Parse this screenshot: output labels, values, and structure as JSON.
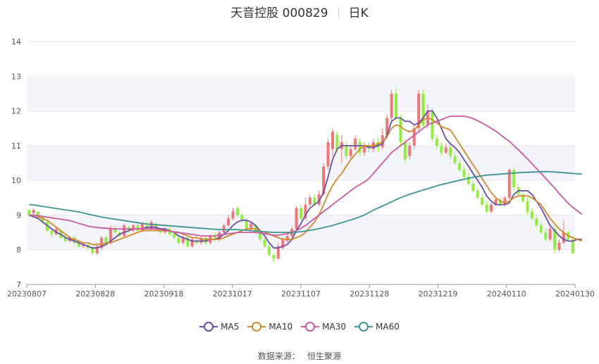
{
  "title": {
    "name": "天音控股 000829",
    "period": "日K"
  },
  "legend": [
    {
      "name": "MA5",
      "color": "#6a4fa3"
    },
    {
      "name": "MA10",
      "color": "#d4882e"
    },
    {
      "name": "MA30",
      "color": "#cc5aa0"
    },
    {
      "name": "MA60",
      "color": "#3f9595"
    }
  ],
  "source": {
    "label": "数据来源：",
    "value": "恒生聚源"
  },
  "colors": {
    "up": "#ee7777",
    "down": "#90ee40",
    "band": "#f4f5fa",
    "axis": "#999999",
    "grid": "#e6e6e6"
  },
  "chart_data": {
    "type": "candlestick",
    "y_ticks": [
      "7",
      "8",
      "9",
      "10",
      "11",
      "12",
      "13",
      "14"
    ],
    "ylim": [
      7,
      14
    ],
    "x_ticks": [
      "20230807",
      "20230828",
      "20230918",
      "20231017",
      "20231107",
      "20231128",
      "20231219",
      "20240110",
      "20240130"
    ],
    "candles": [
      [
        9.15,
        9.0,
        8.95,
        9.1
      ],
      [
        9.05,
        9.15,
        9.0,
        9.2
      ],
      [
        9.1,
        8.95,
        8.9,
        9.1
      ],
      [
        8.95,
        8.8,
        8.75,
        8.95
      ],
      [
        8.8,
        8.55,
        8.5,
        8.85
      ],
      [
        8.55,
        8.45,
        8.35,
        8.6
      ],
      [
        8.45,
        8.6,
        8.4,
        8.65
      ],
      [
        8.55,
        8.35,
        8.3,
        8.6
      ],
      [
        8.35,
        8.25,
        8.2,
        8.45
      ],
      [
        8.25,
        8.35,
        8.2,
        8.4
      ],
      [
        8.35,
        8.2,
        8.15,
        8.4
      ],
      [
        8.2,
        8.1,
        8.05,
        8.3
      ],
      [
        8.1,
        8.15,
        8.05,
        8.2
      ],
      [
        8.15,
        8.05,
        8.0,
        8.2
      ],
      [
        8.05,
        7.9,
        7.85,
        8.1
      ],
      [
        7.9,
        8.1,
        7.85,
        8.2
      ],
      [
        8.05,
        8.35,
        8.0,
        8.4
      ],
      [
        8.35,
        8.2,
        8.15,
        8.4
      ],
      [
        8.2,
        8.6,
        8.15,
        8.7
      ],
      [
        8.6,
        8.5,
        8.45,
        8.7
      ],
      [
        8.5,
        8.4,
        8.35,
        8.55
      ],
      [
        8.4,
        8.7,
        8.35,
        8.75
      ],
      [
        8.65,
        8.55,
        8.5,
        8.7
      ],
      [
        8.55,
        8.7,
        8.5,
        8.75
      ],
      [
        8.7,
        8.55,
        8.5,
        8.75
      ],
      [
        8.55,
        8.75,
        8.5,
        8.8
      ],
      [
        8.7,
        8.6,
        8.55,
        8.8
      ],
      [
        8.6,
        8.8,
        8.55,
        8.85
      ],
      [
        8.75,
        8.6,
        8.55,
        8.8
      ],
      [
        8.6,
        8.5,
        8.45,
        8.65
      ],
      [
        8.5,
        8.6,
        8.45,
        8.65
      ],
      [
        8.6,
        8.45,
        8.4,
        8.65
      ],
      [
        8.45,
        8.35,
        8.3,
        8.5
      ],
      [
        8.35,
        8.2,
        8.15,
        8.4
      ],
      [
        8.2,
        8.35,
        8.15,
        8.4
      ],
      [
        8.35,
        8.1,
        8.05,
        8.4
      ],
      [
        8.1,
        8.3,
        8.05,
        8.35
      ],
      [
        8.25,
        8.2,
        8.15,
        8.35
      ],
      [
        8.2,
        8.35,
        8.15,
        8.4
      ],
      [
        8.35,
        8.2,
        8.15,
        8.4
      ],
      [
        8.2,
        8.4,
        8.15,
        8.45
      ],
      [
        8.4,
        8.3,
        8.25,
        8.5
      ],
      [
        8.3,
        8.5,
        8.25,
        8.55
      ],
      [
        8.5,
        8.7,
        8.45,
        8.75
      ],
      [
        8.7,
        8.9,
        8.65,
        9.0
      ],
      [
        8.9,
        9.1,
        8.85,
        9.2
      ],
      [
        9.2,
        9.0,
        8.95,
        9.25
      ],
      [
        9.0,
        8.85,
        8.8,
        9.05
      ],
      [
        8.85,
        8.6,
        8.55,
        8.9
      ],
      [
        8.6,
        8.75,
        8.55,
        8.8
      ],
      [
        8.7,
        8.5,
        8.45,
        8.75
      ],
      [
        8.5,
        8.3,
        8.25,
        8.55
      ],
      [
        8.3,
        8.1,
        8.05,
        8.35
      ],
      [
        8.1,
        7.85,
        7.8,
        8.15
      ],
      [
        7.85,
        7.75,
        7.65,
        7.9
      ],
      [
        7.75,
        8.1,
        7.7,
        8.2
      ],
      [
        8.05,
        8.3,
        8.0,
        8.35
      ],
      [
        8.25,
        8.4,
        8.2,
        8.45
      ],
      [
        8.4,
        8.6,
        8.35,
        8.65
      ],
      [
        8.6,
        9.2,
        8.55,
        9.25
      ],
      [
        9.2,
        8.9,
        8.85,
        9.3
      ],
      [
        8.9,
        9.3,
        8.85,
        9.5
      ],
      [
        9.3,
        9.5,
        9.25,
        9.6
      ],
      [
        9.5,
        9.3,
        9.25,
        9.6
      ],
      [
        9.3,
        9.6,
        9.25,
        9.7
      ],
      [
        9.6,
        10.4,
        9.55,
        10.5
      ],
      [
        10.4,
        11.1,
        10.3,
        11.2
      ],
      [
        10.9,
        11.4,
        10.7,
        11.5
      ],
      [
        11.3,
        10.9,
        10.8,
        11.4
      ],
      [
        10.9,
        11.1,
        10.5,
        11.3
      ],
      [
        11.0,
        10.7,
        10.6,
        11.1
      ],
      [
        10.7,
        10.9,
        10.6,
        11.0
      ],
      [
        10.9,
        11.2,
        10.85,
        11.3
      ],
      [
        11.1,
        10.8,
        10.7,
        11.2
      ],
      [
        10.8,
        11.0,
        10.7,
        11.1
      ],
      [
        11.0,
        10.9,
        10.8,
        11.1
      ],
      [
        10.9,
        11.1,
        10.8,
        11.2
      ],
      [
        11.1,
        10.95,
        10.8,
        11.25
      ],
      [
        10.95,
        11.3,
        10.9,
        11.5
      ],
      [
        11.3,
        11.8,
        11.2,
        11.9
      ],
      [
        11.8,
        12.5,
        11.7,
        12.6
      ],
      [
        12.5,
        11.8,
        11.7,
        12.7
      ],
      [
        11.8,
        11.1,
        11.0,
        11.9
      ],
      [
        11.1,
        10.6,
        10.5,
        11.2
      ],
      [
        10.7,
        11.0,
        10.6,
        11.1
      ],
      [
        11.0,
        11.5,
        10.9,
        11.6
      ],
      [
        11.5,
        12.5,
        11.4,
        12.6
      ],
      [
        12.5,
        11.6,
        11.5,
        12.6
      ],
      [
        11.6,
        12.0,
        11.5,
        12.2
      ],
      [
        12.0,
        11.2,
        11.1,
        12.1
      ],
      [
        11.2,
        11.0,
        10.9,
        11.3
      ],
      [
        11.0,
        10.8,
        10.7,
        11.1
      ],
      [
        10.8,
        10.95,
        10.75,
        11.05
      ],
      [
        10.95,
        10.7,
        10.6,
        11.0
      ],
      [
        10.7,
        10.5,
        10.45,
        10.8
      ],
      [
        10.5,
        10.3,
        10.25,
        10.6
      ],
      [
        10.3,
        10.1,
        10.05,
        10.4
      ],
      [
        10.1,
        9.9,
        9.85,
        10.2
      ],
      [
        9.9,
        9.7,
        9.65,
        10.0
      ],
      [
        9.7,
        9.5,
        9.45,
        9.8
      ],
      [
        9.5,
        9.3,
        9.25,
        9.6
      ],
      [
        9.3,
        9.1,
        9.05,
        9.4
      ],
      [
        9.1,
        9.3,
        9.05,
        9.35
      ],
      [
        9.3,
        9.45,
        9.25,
        9.5
      ],
      [
        9.45,
        9.3,
        9.25,
        9.5
      ],
      [
        9.3,
        9.5,
        9.25,
        9.55
      ],
      [
        9.5,
        10.3,
        9.45,
        10.35
      ],
      [
        10.3,
        9.8,
        9.7,
        10.4
      ],
      [
        9.8,
        9.6,
        9.55,
        9.9
      ],
      [
        9.6,
        9.4,
        9.35,
        9.7
      ],
      [
        9.4,
        9.1,
        9.0,
        9.5
      ],
      [
        9.1,
        8.9,
        8.85,
        9.2
      ],
      [
        8.9,
        8.7,
        8.65,
        9.0
      ],
      [
        8.7,
        8.5,
        8.45,
        8.8
      ],
      [
        8.5,
        8.3,
        8.25,
        8.6
      ],
      [
        8.3,
        8.6,
        8.25,
        8.65
      ],
      [
        8.6,
        8.0,
        7.9,
        8.7
      ],
      [
        8.0,
        8.2,
        7.95,
        8.3
      ],
      [
        8.2,
        8.5,
        8.15,
        8.85
      ],
      [
        8.5,
        8.3,
        8.25,
        8.55
      ],
      [
        8.3,
        7.9,
        7.85,
        8.35
      ]
    ],
    "series": [
      {
        "name": "MA5",
        "values": [
          9.0,
          8.95,
          8.9,
          8.8,
          8.7,
          8.6,
          8.5,
          8.45,
          8.35,
          8.3,
          8.25,
          8.2,
          8.15,
          8.1,
          8.05,
          8.05,
          8.1,
          8.15,
          8.25,
          8.35,
          8.45,
          8.5,
          8.55,
          8.6,
          8.6,
          8.6,
          8.65,
          8.65,
          8.65,
          8.6,
          8.6,
          8.55,
          8.5,
          8.4,
          8.35,
          8.3,
          8.25,
          8.25,
          8.25,
          8.25,
          8.3,
          8.3,
          8.35,
          8.45,
          8.55,
          8.7,
          8.8,
          8.85,
          8.85,
          8.8,
          8.7,
          8.55,
          8.4,
          8.2,
          8.05,
          8.05,
          8.1,
          8.15,
          8.3,
          8.55,
          8.75,
          9.0,
          9.2,
          9.3,
          9.4,
          9.65,
          10.1,
          10.6,
          10.9,
          11.0,
          11.0,
          11.0,
          11.0,
          11.0,
          11.0,
          10.95,
          10.95,
          11.0,
          11.05,
          11.3,
          11.7,
          11.8,
          11.8,
          11.7,
          11.7,
          11.6,
          11.65,
          11.8,
          12.0,
          12.0,
          11.8,
          11.5,
          11.2,
          11.05,
          10.95,
          10.8,
          10.6,
          10.4,
          10.2,
          10.0,
          9.8,
          9.55,
          9.4,
          9.3,
          9.3,
          9.3,
          9.35,
          9.6,
          9.7,
          9.7,
          9.7,
          9.6,
          9.4,
          9.2,
          8.95,
          8.7,
          8.55,
          8.4,
          8.3,
          8.25,
          8.25,
          8.3,
          8.3
        ]
      },
      {
        "name": "MA10",
        "values": [
          9.0,
          9.0,
          8.95,
          8.9,
          8.85,
          8.75,
          8.65,
          8.55,
          8.45,
          8.35,
          8.3,
          8.25,
          8.2,
          8.2,
          8.15,
          8.15,
          8.15,
          8.2,
          8.2,
          8.25,
          8.3,
          8.35,
          8.4,
          8.45,
          8.5,
          8.55,
          8.55,
          8.55,
          8.55,
          8.55,
          8.55,
          8.55,
          8.5,
          8.5,
          8.45,
          8.4,
          8.35,
          8.35,
          8.3,
          8.3,
          8.3,
          8.3,
          8.3,
          8.35,
          8.4,
          8.45,
          8.5,
          8.55,
          8.6,
          8.6,
          8.6,
          8.55,
          8.5,
          8.45,
          8.4,
          8.35,
          8.3,
          8.3,
          8.3,
          8.35,
          8.4,
          8.5,
          8.65,
          8.8,
          9.0,
          9.3,
          9.6,
          9.85,
          10.05,
          10.2,
          10.4,
          10.6,
          10.75,
          10.9,
          11.0,
          11.0,
          11.0,
          11.05,
          11.1,
          11.25,
          11.5,
          11.6,
          11.55,
          11.45,
          11.4,
          11.45,
          11.6,
          11.75,
          11.8,
          11.75,
          11.65,
          11.55,
          11.5,
          11.45,
          11.25,
          11.05,
          10.85,
          10.65,
          10.45,
          10.25,
          10.05,
          9.85,
          9.65,
          9.5,
          9.4,
          9.35,
          9.4,
          9.5,
          9.55,
          9.55,
          9.55,
          9.5,
          9.4,
          9.3,
          9.1,
          8.9,
          8.75,
          8.6,
          8.5,
          8.4,
          8.35,
          8.3,
          8.25
        ]
      },
      {
        "name": "MA30",
        "values": [
          9.0,
          9.0,
          8.98,
          8.96,
          8.94,
          8.92,
          8.9,
          8.88,
          8.86,
          8.84,
          8.8,
          8.76,
          8.72,
          8.68,
          8.66,
          8.64,
          8.63,
          8.62,
          8.61,
          8.6,
          8.6,
          8.6,
          8.6,
          8.6,
          8.6,
          8.6,
          8.6,
          8.6,
          8.6,
          8.58,
          8.56,
          8.54,
          8.52,
          8.5,
          8.48,
          8.46,
          8.44,
          8.42,
          8.4,
          8.4,
          8.4,
          8.4,
          8.42,
          8.44,
          8.46,
          8.48,
          8.5,
          8.5,
          8.5,
          8.5,
          8.5,
          8.48,
          8.46,
          8.44,
          8.42,
          8.42,
          8.44,
          8.46,
          8.5,
          8.55,
          8.62,
          8.7,
          8.8,
          8.9,
          9.0,
          9.1,
          9.2,
          9.3,
          9.4,
          9.5,
          9.6,
          9.7,
          9.8,
          9.88,
          9.95,
          10.05,
          10.2,
          10.35,
          10.5,
          10.65,
          10.8,
          10.9,
          11.0,
          11.1,
          11.2,
          11.3,
          11.4,
          11.5,
          11.6,
          11.65,
          11.7,
          11.75,
          11.8,
          11.85,
          11.85,
          11.85,
          11.85,
          11.82,
          11.78,
          11.72,
          11.65,
          11.58,
          11.5,
          11.42,
          11.32,
          11.22,
          11.12,
          11.0,
          10.88,
          10.75,
          10.62,
          10.48,
          10.34,
          10.2,
          10.06,
          9.92,
          9.78,
          9.62,
          9.48,
          9.34,
          9.22,
          9.12,
          9.02
        ]
      },
      {
        "name": "MA60",
        "values": [
          9.3,
          9.29,
          9.27,
          9.25,
          9.23,
          9.21,
          9.19,
          9.17,
          9.15,
          9.13,
          9.11,
          9.09,
          9.06,
          9.03,
          9.0,
          8.97,
          8.94,
          8.92,
          8.9,
          8.88,
          8.86,
          8.84,
          8.82,
          8.8,
          8.78,
          8.76,
          8.74,
          8.73,
          8.72,
          8.71,
          8.7,
          8.69,
          8.68,
          8.67,
          8.66,
          8.65,
          8.64,
          8.63,
          8.62,
          8.61,
          8.6,
          8.59,
          8.58,
          8.58,
          8.58,
          8.58,
          8.58,
          8.57,
          8.56,
          8.55,
          8.54,
          8.53,
          8.52,
          8.51,
          8.5,
          8.5,
          8.5,
          8.5,
          8.5,
          8.51,
          8.52,
          8.54,
          8.56,
          8.58,
          8.61,
          8.64,
          8.67,
          8.7,
          8.74,
          8.78,
          8.82,
          8.86,
          8.9,
          8.95,
          9.0,
          9.07,
          9.14,
          9.2,
          9.26,
          9.32,
          9.38,
          9.44,
          9.5,
          9.55,
          9.6,
          9.64,
          9.68,
          9.72,
          9.76,
          9.8,
          9.84,
          9.88,
          9.91,
          9.94,
          9.97,
          10.0,
          10.03,
          10.06,
          10.09,
          10.11,
          10.13,
          10.15,
          10.16,
          10.17,
          10.18,
          10.19,
          10.2,
          10.21,
          10.22,
          10.23,
          10.23,
          10.24,
          10.24,
          10.25,
          10.25,
          10.25,
          10.24,
          10.23,
          10.22,
          10.21,
          10.2,
          10.19,
          10.18
        ]
      }
    ]
  }
}
